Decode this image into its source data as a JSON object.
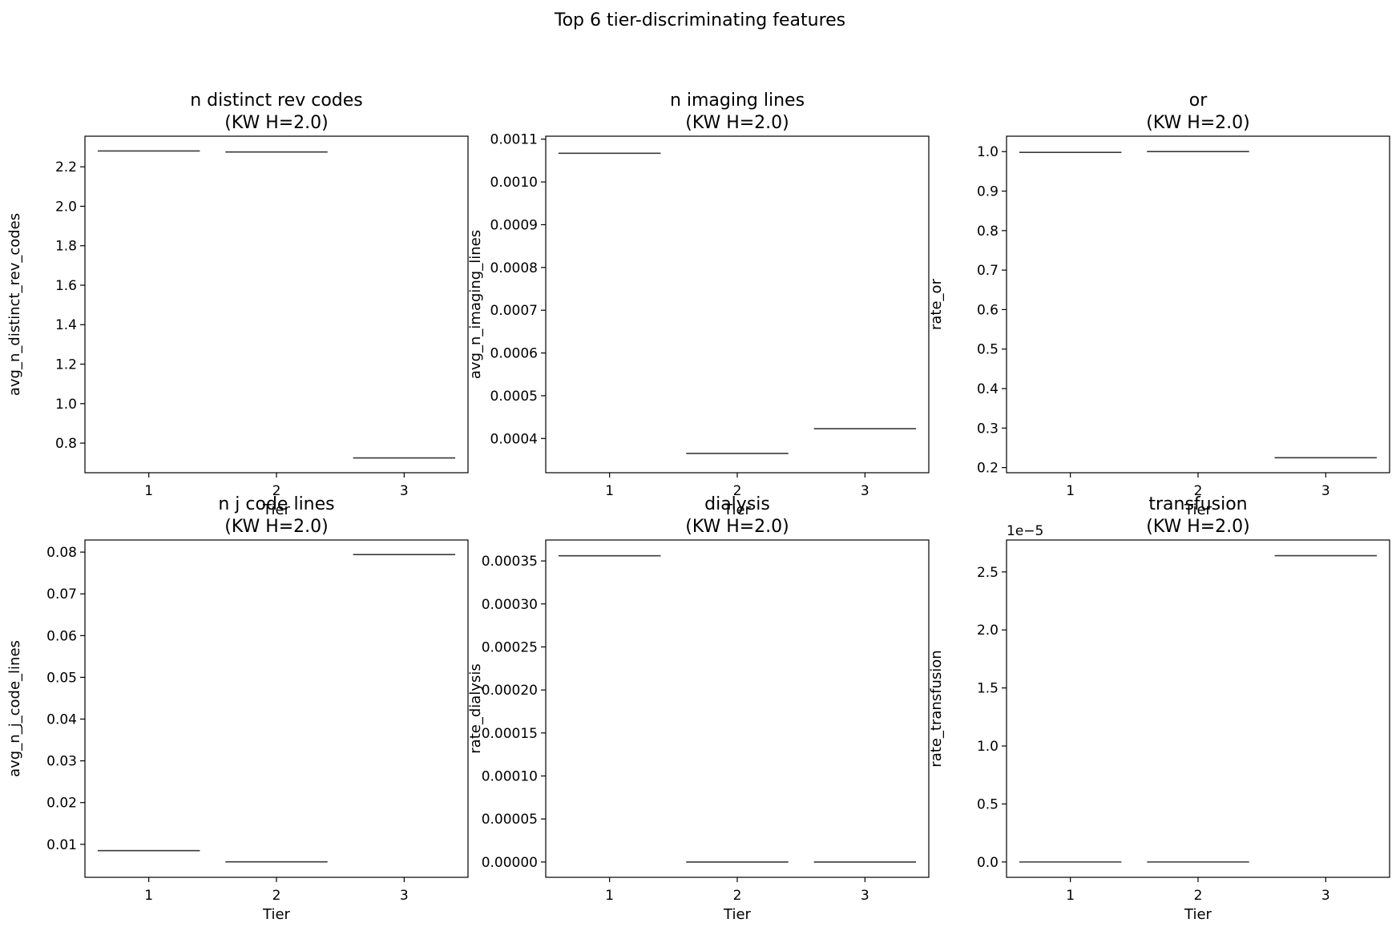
{
  "figure": {
    "suptitle": "Top 6 tier-discriminating features"
  },
  "chart_data": [
    {
      "type": "bar",
      "title_line1": "n distinct rev codes",
      "title_line2": "(KW H=2.0)",
      "xlabel": "Tier",
      "ylabel": "avg_n_distinct_rev_codes",
      "categories": [
        "1",
        "2",
        "3"
      ],
      "values": [
        2.28,
        2.275,
        0.725
      ],
      "ylim": [
        0.65,
        2.355
      ],
      "yticks": [
        0.8,
        1.0,
        1.2,
        1.4,
        1.6,
        1.8,
        2.0,
        2.2
      ],
      "ytick_labels": [
        "0.8",
        "1.0",
        "1.2",
        "1.4",
        "1.6",
        "1.8",
        "2.0",
        "2.2"
      ],
      "offset_text": ""
    },
    {
      "type": "bar",
      "title_line1": "n imaging lines",
      "title_line2": "(KW H=2.0)",
      "xlabel": "Tier",
      "ylabel": "avg_n_imaging_lines",
      "categories": [
        "1",
        "2",
        "3"
      ],
      "values": [
        0.001067,
        0.000365,
        0.000423
      ],
      "ylim": [
        0.00032,
        0.001107
      ],
      "yticks": [
        0.0004,
        0.0005,
        0.0006,
        0.0007,
        0.0008,
        0.0009,
        0.001,
        0.0011
      ],
      "ytick_labels": [
        "0.0004",
        "0.0005",
        "0.0006",
        "0.0007",
        "0.0008",
        "0.0009",
        "0.0010",
        "0.0011"
      ],
      "offset_text": ""
    },
    {
      "type": "bar",
      "title_line1": "or",
      "title_line2": "(KW H=2.0)",
      "xlabel": "Tier",
      "ylabel": "rate_or",
      "categories": [
        "1",
        "2",
        "3"
      ],
      "values": [
        0.998,
        1.0,
        0.225
      ],
      "ylim": [
        0.187,
        1.039
      ],
      "yticks": [
        0.2,
        0.3,
        0.4,
        0.5,
        0.6,
        0.7,
        0.8,
        0.9,
        1.0
      ],
      "ytick_labels": [
        "0.2",
        "0.3",
        "0.4",
        "0.5",
        "0.6",
        "0.7",
        "0.8",
        "0.9",
        "1.0"
      ],
      "offset_text": ""
    },
    {
      "type": "bar",
      "title_line1": "n j code lines",
      "title_line2": "(KW H=2.0)",
      "xlabel": "Tier",
      "ylabel": "avg_n_j_code_lines",
      "categories": [
        "1",
        "2",
        "3"
      ],
      "values": [
        0.0085,
        0.0058,
        0.0794
      ],
      "ylim": [
        0.0021,
        0.0829
      ],
      "yticks": [
        0.01,
        0.02,
        0.03,
        0.04,
        0.05,
        0.06,
        0.07,
        0.08
      ],
      "ytick_labels": [
        "0.01",
        "0.02",
        "0.03",
        "0.04",
        "0.05",
        "0.06",
        "0.07",
        "0.08"
      ],
      "offset_text": ""
    },
    {
      "type": "bar",
      "title_line1": "dialysis",
      "title_line2": "(KW H=2.0)",
      "xlabel": "Tier",
      "ylabel": "rate_dialysis",
      "categories": [
        "1",
        "2",
        "3"
      ],
      "values": [
        0.000356,
        0.0,
        0.0
      ],
      "ylim": [
        -1.78e-05,
        0.0003743
      ],
      "yticks": [
        0.0,
        5e-05,
        0.0001,
        0.00015,
        0.0002,
        0.00025,
        0.0003,
        0.00035
      ],
      "ytick_labels": [
        "0.00000",
        "0.00005",
        "0.00010",
        "0.00015",
        "0.00020",
        "0.00025",
        "0.00030",
        "0.00035"
      ],
      "offset_text": ""
    },
    {
      "type": "bar",
      "title_line1": "transfusion",
      "title_line2": "(KW H=2.0)",
      "xlabel": "Tier",
      "ylabel": "rate_transfusion",
      "categories": [
        "1",
        "2",
        "3"
      ],
      "values": [
        0.0,
        0.0,
        2.64
      ],
      "ylim": [
        -0.132,
        2.775
      ],
      "yticks": [
        0.0,
        0.5,
        1.0,
        1.5,
        2.0,
        2.5
      ],
      "ytick_labels": [
        "0.0",
        "0.5",
        "1.0",
        "1.5",
        "2.0",
        "2.5"
      ],
      "offset_text": "1e−5"
    }
  ]
}
